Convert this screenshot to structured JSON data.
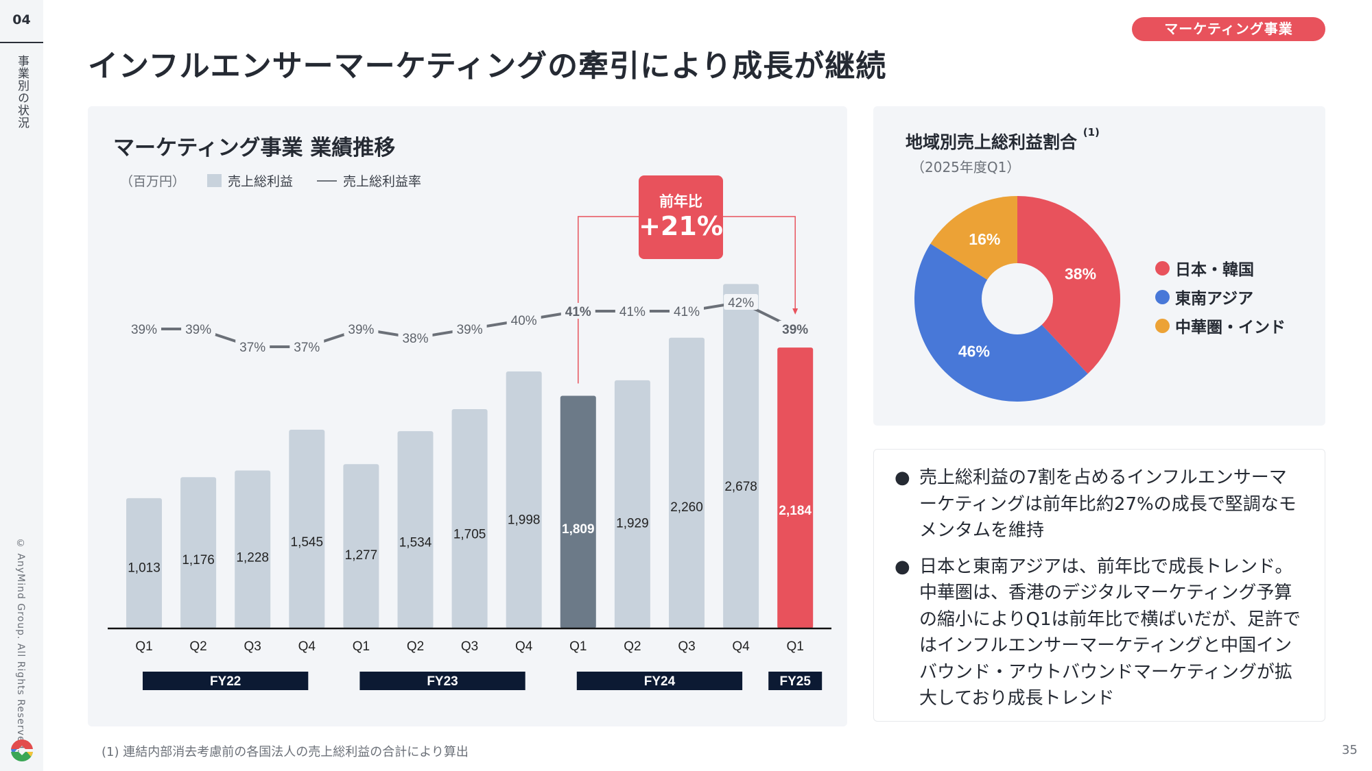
{
  "sidebar": {
    "section_number": "04",
    "section_label": "事業別の状況",
    "copyright": "© AnyMind Group. All Rights Reserved."
  },
  "header": {
    "title": "インフルエンサーマーケティングの牽引により成長が継続",
    "badge": "マーケティング事業"
  },
  "colors": {
    "accent_red": "#e8525c",
    "bar_default": "#c8d2dc",
    "bar_highlight_prev": "#6c7a88",
    "fy_label_bg": "#0c1a33",
    "line": "#6b7078",
    "pie_japan_korea": "#e8525c",
    "pie_sea": "#4878d8",
    "pie_china_india": "#eca236"
  },
  "chart_data": [
    {
      "type": "bar",
      "title": "マーケティング事業 業績推移",
      "unit_label": "（百万円）",
      "legend": [
        {
          "name": "売上総利益",
          "kind": "bar"
        },
        {
          "name": "売上総利益率",
          "kind": "line"
        }
      ],
      "categories": [
        "Q1",
        "Q2",
        "Q3",
        "Q4",
        "Q1",
        "Q2",
        "Q3",
        "Q4",
        "Q1",
        "Q2",
        "Q3",
        "Q4",
        "Q1"
      ],
      "groups": [
        {
          "label": "FY22",
          "start": 0,
          "end": 3
        },
        {
          "label": "FY23",
          "start": 4,
          "end": 7
        },
        {
          "label": "FY24",
          "start": 8,
          "end": 11
        },
        {
          "label": "FY25",
          "start": 12,
          "end": 12
        }
      ],
      "series": [
        {
          "name": "売上総利益",
          "type": "bar",
          "values": [
            1013,
            1176,
            1228,
            1545,
            1277,
            1534,
            1705,
            1998,
            1809,
            1929,
            2260,
            2678,
            2184
          ],
          "labels": [
            "1,013",
            "1,176",
            "1,228",
            "1,545",
            "1,277",
            "1,534",
            "1,705",
            "1,998",
            "1,809",
            "1,929",
            "2,260",
            "2,678",
            "2,184"
          ],
          "highlight": {
            "8": "prev",
            "12": "current"
          }
        },
        {
          "name": "売上総利益率",
          "type": "line",
          "values": [
            39,
            39,
            37,
            37,
            39,
            38,
            39,
            40,
            41,
            41,
            41,
            42,
            39
          ],
          "labels": [
            "39%",
            "39%",
            "37%",
            "37%",
            "39%",
            "38%",
            "39%",
            "40%",
            "41%",
            "41%",
            "41%",
            "42%",
            "39%"
          ],
          "bold_indices": [
            8,
            12
          ]
        }
      ],
      "annotation": {
        "line1": "前年比",
        "line2": "+21%",
        "from_index": 8,
        "to_index": 12
      },
      "xlabel": "",
      "ylabel": "",
      "grid": false
    },
    {
      "type": "pie",
      "title": "地域別売上総利益割合",
      "title_note": "(1)",
      "subtitle": "（2025年度Q1）",
      "slices": [
        {
          "name": "日本・韓国",
          "value": 38,
          "label": "38%"
        },
        {
          "name": "東南アジア",
          "value": 46,
          "label": "46%"
        },
        {
          "name": "中華圏・インド",
          "value": 16,
          "label": "16%"
        }
      ],
      "donut": true,
      "legend_position": "right"
    }
  ],
  "bullets": [
    "売上総利益の7割を占めるインフルエンサーマーケティングは前年比約27%の成長で堅調なモメンタムを維持",
    "日本と東南アジアは、前年比で成長トレンド。中華圏は、香港のデジタルマーケティング予算の縮小によりQ1は前年比で横ばいだが、足許ではインフルエンサーマーケティングと中国インバウンド・アウトバウンドマーケティングが拡大しており成長トレンド"
  ],
  "bullet_symbol": "●",
  "footnote": "(1) 連結内部消去考慮前の各国法人の売上総利益の合計により算出",
  "page_number": "35"
}
